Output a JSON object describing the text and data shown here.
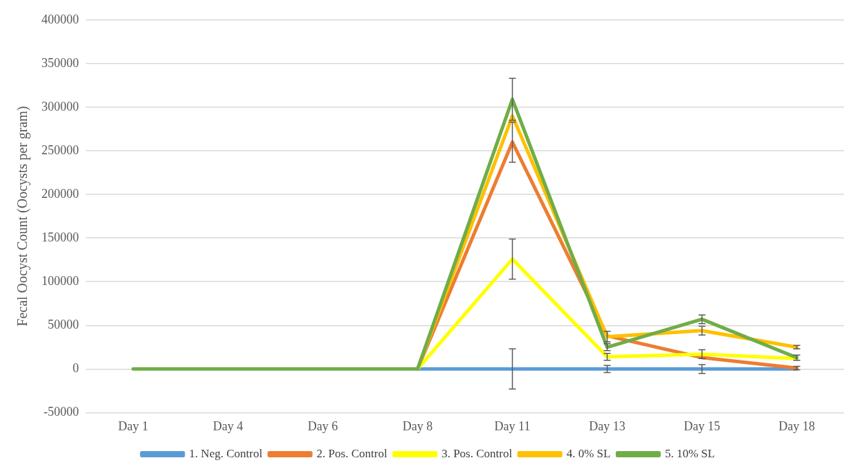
{
  "chart_data": {
    "type": "line",
    "ylabel": "Fecal Oocyst Count (Oocysts per gram)",
    "categories": [
      "Day 1",
      "Day 4",
      "Day 6",
      "Day 8",
      "Day 11",
      "Day 13",
      "Day 15",
      "Day 18"
    ],
    "ylim": [
      -50000,
      400000
    ],
    "yticks": [
      -50000,
      0,
      50000,
      100000,
      150000,
      200000,
      250000,
      300000,
      350000,
      400000
    ],
    "grid": "y",
    "legend": "bottom",
    "marker": "none",
    "line_style": "solid",
    "series": [
      {
        "name": "1. Neg. Control",
        "color": "#5b9bd5",
        "values": [
          null,
          null,
          null,
          0,
          0,
          0,
          0,
          0
        ],
        "errors": [
          null,
          null,
          null,
          null,
          23000,
          4000,
          5000,
          null
        ]
      },
      {
        "name": "2. Pos. Control",
        "color": "#ed7d31",
        "values": [
          null,
          null,
          null,
          0,
          260000,
          38000,
          13000,
          1000
        ],
        "errors": [
          null,
          null,
          null,
          null,
          23000,
          null,
          null,
          2000
        ]
      },
      {
        "name": "3. Pos. Control",
        "color": "#ffff00",
        "values": [
          null,
          null,
          null,
          0,
          126000,
          14000,
          17000,
          12000
        ],
        "errors": [
          null,
          null,
          null,
          null,
          23000,
          4000,
          5000,
          null
        ]
      },
      {
        "name": "4. 0% SL",
        "color": "#ffc000",
        "values": [
          null,
          null,
          null,
          0,
          290000,
          37000,
          44000,
          25000
        ],
        "errors": [
          null,
          null,
          null,
          null,
          null,
          6000,
          5000,
          2000
        ]
      },
      {
        "name": "5. 10% SL",
        "color": "#70ad47",
        "values": [
          0,
          0,
          0,
          0,
          309000,
          25000,
          57000,
          13000
        ],
        "errors": [
          null,
          null,
          null,
          null,
          24000,
          4000,
          5000,
          3000
        ]
      }
    ]
  }
}
